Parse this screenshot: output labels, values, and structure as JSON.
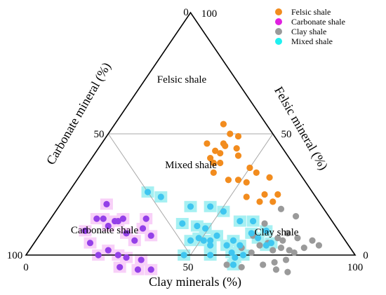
{
  "chart_data": {
    "type": "scatter",
    "subtype": "ternary",
    "title": "",
    "axes": {
      "bottom": {
        "label": "Clay minerals (%)",
        "ticks": [
          "0",
          "50",
          "100"
        ]
      },
      "left": {
        "label": "Carbonate mineral (%)",
        "ticks": [
          "100",
          "50",
          "0"
        ]
      },
      "right": {
        "label": "Felsic mineral (%)",
        "ticks": [
          "100",
          "50",
          "0"
        ]
      }
    },
    "regions": [
      "Felsic shale",
      "Mixed shale",
      "Carbonate shale",
      "Clay shale"
    ],
    "legend": {
      "position": "top-right"
    },
    "colors": {
      "Felsic shale": "#F28C1E",
      "Carbonate shale": "#E020E0",
      "Clay shale": "#9A9A9A",
      "Mixed shale": "#1FF0F0",
      "carbonate_points": "#9440E8",
      "mixed_points": "#3FC6F0",
      "highlight_carbonate": "#F8D0F8",
      "highlight_mixed": "#A6F0F2",
      "region_lines": "#A8A8A8"
    },
    "series": [
      {
        "name": "Felsic shale",
        "points": [
          {
            "clay": 46,
            "carbonate": 23
          },
          {
            "clay": 40,
            "carbonate": 26
          },
          {
            "clay": 38,
            "carbonate": 24
          },
          {
            "clay": 36,
            "carbonate": 24
          },
          {
            "clay": 40,
            "carbonate": 22
          },
          {
            "clay": 38,
            "carbonate": 20
          },
          {
            "clay": 36,
            "carbonate": 21
          },
          {
            "clay": 32,
            "carbonate": 22
          },
          {
            "clay": 38,
            "carbonate": 17
          },
          {
            "clay": 37,
            "carbonate": 17
          },
          {
            "clay": 42,
            "carbonate": 14
          },
          {
            "clay": 44,
            "carbonate": 15
          },
          {
            "clay": 37,
            "carbonate": 13
          },
          {
            "clay": 33,
            "carbonate": 13
          },
          {
            "clay": 40,
            "carbonate": 11
          },
          {
            "clay": 50,
            "carbonate": 14
          },
          {
            "clay": 53,
            "carbonate": 13
          },
          {
            "clay": 58,
            "carbonate": 10
          },
          {
            "clay": 60,
            "carbonate": 15
          },
          {
            "clay": 64,
            "carbonate": 11
          },
          {
            "clay": 64,
            "carbonate": 14
          },
          {
            "clay": 60,
            "carbonate": 18
          },
          {
            "clay": 52,
            "carbonate": 18
          },
          {
            "clay": 55,
            "carbonate": 21
          },
          {
            "clay": 49,
            "carbonate": 20
          }
        ]
      },
      {
        "name": "Carbonate shale",
        "points": [
          {
            "clay": 14,
            "carbonate": 71
          },
          {
            "clay": 16,
            "carbonate": 69
          },
          {
            "clay": 19,
            "carbonate": 69
          },
          {
            "clay": 20,
            "carbonate": 66
          },
          {
            "clay": 21,
            "carbonate": 65
          },
          {
            "clay": 14,
            "carbonate": 65
          },
          {
            "clay": 22,
            "carbonate": 63
          },
          {
            "clay": 26,
            "carbonate": 65
          },
          {
            "clay": 13,
            "carbonate": 77
          },
          {
            "clay": 17,
            "carbonate": 78
          },
          {
            "clay": 22,
            "carbonate": 78
          },
          {
            "clay": 28,
            "carbonate": 72
          },
          {
            "clay": 31,
            "carbonate": 70
          },
          {
            "clay": 24,
            "carbonate": 74
          },
          {
            "clay": 31,
            "carbonate": 74
          },
          {
            "clay": 30,
            "carbonate": 64
          },
          {
            "clay": 34,
            "carbonate": 58
          },
          {
            "clay": 36,
            "carbonate": 66
          },
          {
            "clay": 37,
            "carbonate": 69
          },
          {
            "clay": 41,
            "carbonate": 65
          },
          {
            "clay": 29,
            "carbonate": 56
          },
          {
            "clay": 30,
            "carbonate": 59
          }
        ]
      },
      {
        "name": "Clay shale",
        "points": [
          {
            "clay": 68,
            "carbonate": 13
          },
          {
            "clay": 74,
            "carbonate": 10
          },
          {
            "clay": 75,
            "carbonate": 16
          },
          {
            "clay": 73,
            "carbonate": 20
          },
          {
            "clay": 75,
            "carbonate": 19
          },
          {
            "clay": 76,
            "carbonate": 21
          },
          {
            "clay": 79,
            "carbonate": 14
          },
          {
            "clay": 79,
            "carbonate": 19
          },
          {
            "clay": 74,
            "carbonate": 24
          },
          {
            "clay": 77,
            "carbonate": 26
          },
          {
            "clay": 80,
            "carbonate": 22
          },
          {
            "clay": 83,
            "carbonate": 14
          },
          {
            "clay": 84,
            "carbonate": 10
          },
          {
            "clay": 87,
            "carbonate": 9
          },
          {
            "clay": 66,
            "carbonate": 21
          },
          {
            "clay": 65,
            "carbonate": 27
          },
          {
            "clay": 68,
            "carbonate": 31
          },
          {
            "clay": 64,
            "carbonate": 33
          },
          {
            "clay": 69,
            "carbonate": 27
          },
          {
            "clay": 74,
            "carbonate": 30
          },
          {
            "clay": 63,
            "carbonate": 41
          },
          {
            "clay": 68,
            "carbonate": 37
          },
          {
            "clay": 71,
            "carbonate": 24
          },
          {
            "clay": 79,
            "carbonate": 27
          },
          {
            "clay": 83,
            "carbonate": 24
          },
          {
            "clay": 81,
            "carbonate": 18
          }
        ]
      },
      {
        "name": "Mixed shale",
        "points": [
          {
            "clay": 24,
            "carbonate": 50
          },
          {
            "clay": 29,
            "carbonate": 47
          },
          {
            "clay": 40,
            "carbonate": 40
          },
          {
            "clay": 46,
            "carbonate": 34
          },
          {
            "clay": 51,
            "carbonate": 31
          },
          {
            "clay": 58,
            "carbonate": 28
          },
          {
            "clay": 62,
            "carbonate": 24
          },
          {
            "clay": 64,
            "carbonate": 27
          },
          {
            "clay": 67,
            "carbonate": 26
          },
          {
            "clay": 68,
            "carbonate": 22
          },
          {
            "clay": 72,
            "carbonate": 23
          },
          {
            "clay": 71,
            "carbonate": 25
          },
          {
            "clay": 64,
            "carbonate": 37
          },
          {
            "clay": 65,
            "carbonate": 39
          },
          {
            "clay": 66,
            "carbonate": 34
          },
          {
            "clay": 63,
            "carbonate": 33
          },
          {
            "clay": 62,
            "carbonate": 37
          },
          {
            "clay": 60,
            "carbonate": 34
          },
          {
            "clay": 59,
            "carbonate": 37
          },
          {
            "clay": 54,
            "carbonate": 38
          },
          {
            "clay": 53,
            "carbonate": 41
          },
          {
            "clay": 51,
            "carbonate": 43
          },
          {
            "clay": 49,
            "carbonate": 44
          },
          {
            "clay": 49,
            "carbonate": 40
          },
          {
            "clay": 54,
            "carbonate": 42
          },
          {
            "clay": 46,
            "carbonate": 42
          },
          {
            "clay": 41,
            "carbonate": 46
          },
          {
            "clay": 47,
            "carbonate": 47
          },
          {
            "clay": 56,
            "carbonate": 44
          },
          {
            "clay": 48,
            "carbonate": 52
          }
        ]
      }
    ]
  }
}
